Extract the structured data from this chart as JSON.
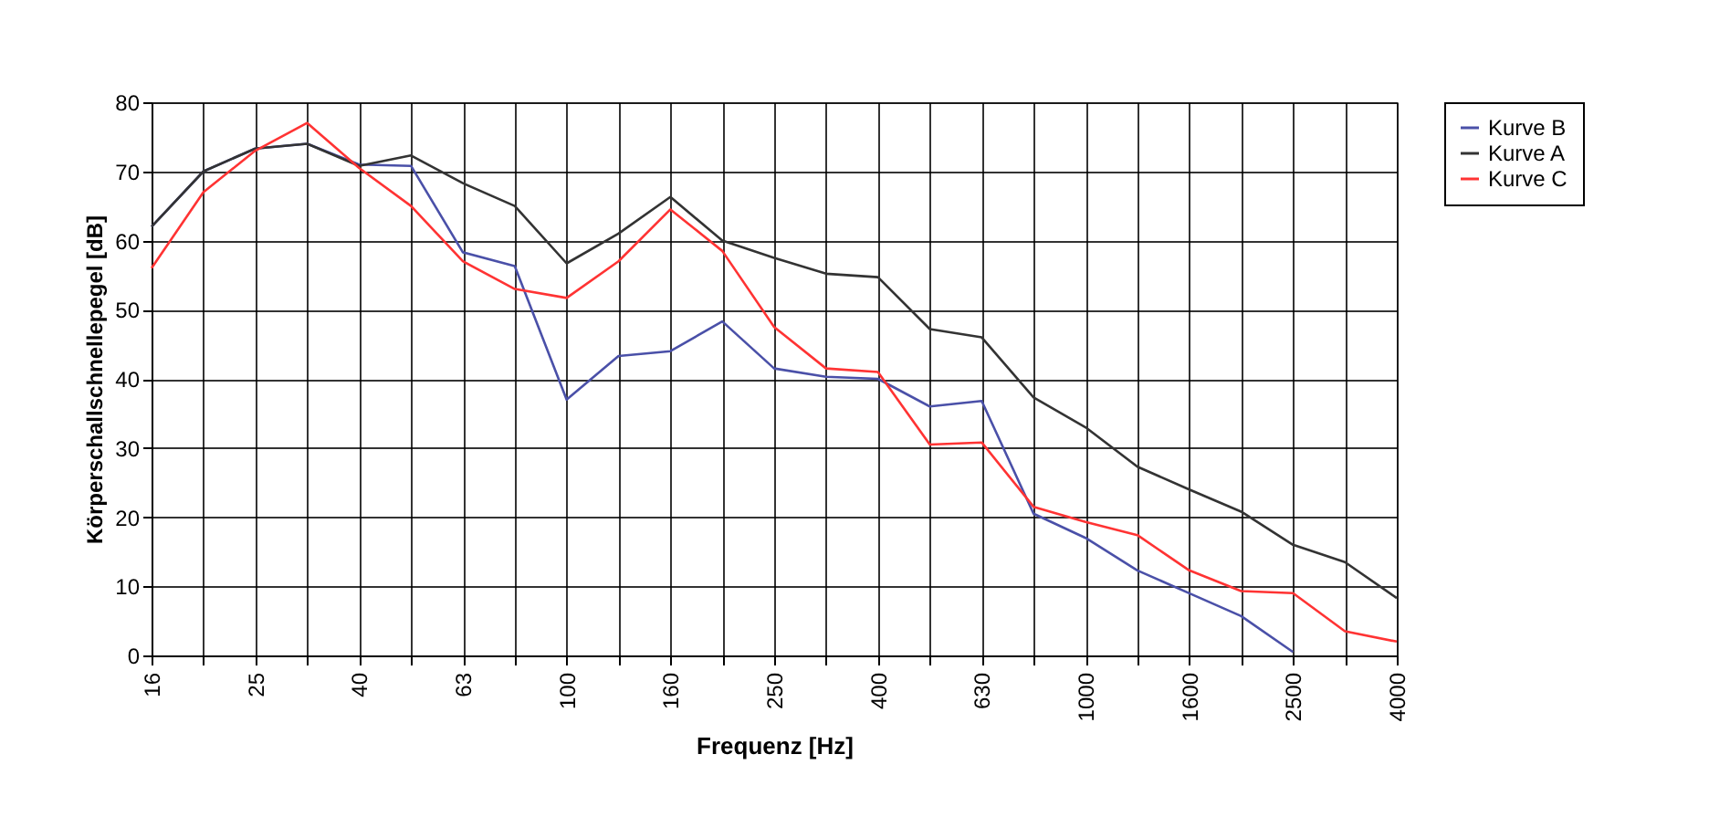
{
  "chart_data": {
    "type": "line",
    "xlabel": "Frequenz [Hz]",
    "ylabel": "Körperschallschnellepegel [dB]",
    "categories": [
      "16",
      null,
      "25",
      null,
      "40",
      null,
      "63",
      null,
      "100",
      null,
      "160",
      null,
      "250",
      null,
      "400",
      null,
      "630",
      null,
      "1000",
      null,
      "1600",
      null,
      "2500",
      null,
      "4000"
    ],
    "series": [
      {
        "name": "Kurve B",
        "color": "#4a50a8",
        "values": [
          62,
          70,
          73.3,
          74,
          71,
          70.8,
          58.3,
          56.3,
          37,
          43.3,
          44,
          48.3,
          41.5,
          40.3,
          40,
          36,
          36.8,
          20.5,
          17,
          12.3,
          9,
          5.7,
          0.5,
          null,
          null
        ]
      },
      {
        "name": "Kurve A",
        "color": "#333333",
        "values": [
          62,
          70,
          73.3,
          74,
          70.8,
          72.3,
          68.3,
          65,
          56.7,
          61,
          66.3,
          60,
          57.5,
          55.2,
          54.7,
          47.2,
          46,
          37.3,
          33,
          27.3,
          24,
          20.8,
          16,
          13.5,
          8.3
        ]
      },
      {
        "name": "Kurve C",
        "color": "#ff3333",
        "values": [
          56,
          67,
          73,
          77,
          70.5,
          65,
          57,
          53,
          51.7,
          57,
          64.5,
          58.5,
          47.5,
          41.5,
          41,
          30.5,
          30.8,
          21.5,
          19.3,
          17.4,
          12.3,
          9.3,
          9,
          3.5,
          2
        ]
      }
    ],
    "ylim": [
      0,
      80
    ],
    "yticks": [
      0,
      10,
      20,
      30,
      40,
      50,
      60,
      70,
      80
    ],
    "grid": true,
    "legend": "right",
    "marker": "none",
    "line_style": "solid"
  }
}
